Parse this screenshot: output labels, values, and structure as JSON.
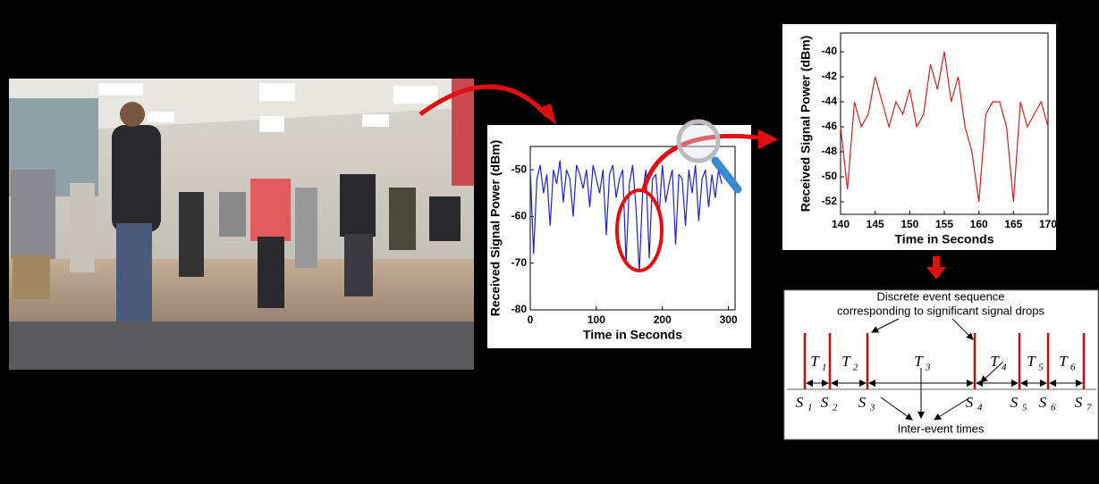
{
  "chart_data": [
    {
      "type": "line",
      "color": "#2020d0",
      "xlabel": "Time in Seconds",
      "ylabel": "Received Signal Power (dBm)",
      "x": [
        0,
        5,
        10,
        15,
        20,
        25,
        30,
        35,
        40,
        45,
        50,
        55,
        60,
        65,
        70,
        75,
        80,
        85,
        90,
        95,
        100,
        105,
        110,
        115,
        120,
        125,
        130,
        135,
        140,
        145,
        150,
        155,
        160,
        165,
        170,
        175,
        180,
        185,
        190,
        195,
        200,
        205,
        210,
        215,
        220,
        225,
        230,
        235,
        240,
        245,
        250,
        255,
        260,
        265,
        270,
        275,
        280,
        285,
        290
      ],
      "values": [
        -50,
        -68,
        -52,
        -49,
        -55,
        -51,
        -62,
        -50,
        -53,
        -48,
        -57,
        -50,
        -52,
        -60,
        -49,
        -51,
        -54,
        -50,
        -58,
        -49,
        -52,
        -55,
        -50,
        -64,
        -51,
        -49,
        -56,
        -52,
        -50,
        -70,
        -53,
        -49,
        -58,
        -72,
        -55,
        -50,
        -69,
        -52,
        -51,
        -60,
        -49,
        -57,
        -53,
        -50,
        -66,
        -51,
        -52,
        -62,
        -50,
        -55,
        -49,
        -61,
        -52,
        -50,
        -58,
        -51,
        -56,
        -50,
        -53
      ],
      "xlim": [
        0,
        310
      ],
      "xticks": [
        0,
        100,
        200,
        300
      ],
      "ylim": [
        -80,
        -45
      ],
      "yticks": [
        -80,
        -70,
        -60,
        -50
      ]
    },
    {
      "type": "line",
      "color": "#d02020",
      "xlabel": "Time in Seconds",
      "ylabel": "Received Signal Power (dBm)",
      "x": [
        140,
        141,
        142,
        143,
        144,
        145,
        146,
        147,
        148,
        149,
        150,
        151,
        152,
        153,
        154,
        155,
        156,
        157,
        158,
        159,
        160,
        161,
        162,
        163,
        164,
        165,
        166,
        167,
        168,
        169,
        170
      ],
      "values": [
        -46,
        -51,
        -44,
        -46,
        -45,
        -42,
        -44,
        -46,
        -44,
        -45,
        -43,
        -46,
        -45,
        -41,
        -43,
        -40,
        -44,
        -42,
        -46,
        -48,
        -52,
        -45,
        -44,
        -44,
        -46,
        -52,
        -44,
        -46,
        -45,
        -44,
        -46
      ],
      "xlim": [
        140,
        170
      ],
      "xticks": [
        140,
        145,
        150,
        155,
        160,
        165,
        170
      ],
      "ylim": [
        -53,
        -38.5
      ],
      "yticks": [
        -52,
        -50,
        -48,
        -46,
        -44,
        -42,
        -40
      ]
    }
  ],
  "diagram": {
    "caption": [
      "Discrete event sequence",
      "corresponding to significant signal drops"
    ],
    "footer": "Inter-event times",
    "intervals": [
      {
        "base": "T",
        "sub": "1"
      },
      {
        "base": "T",
        "sub": "2"
      },
      {
        "base": "T",
        "sub": "3"
      },
      {
        "base": "T",
        "sub": "4"
      },
      {
        "base": "T",
        "sub": "5"
      },
      {
        "base": "T",
        "sub": "6"
      }
    ],
    "events": [
      {
        "base": "S",
        "sub": "1"
      },
      {
        "base": "S",
        "sub": "2"
      },
      {
        "base": "S",
        "sub": "3"
      },
      {
        "base": "S",
        "sub": "4"
      },
      {
        "base": "S",
        "sub": "5"
      },
      {
        "base": "S",
        "sub": "6"
      },
      {
        "base": "S",
        "sub": "7"
      }
    ]
  }
}
